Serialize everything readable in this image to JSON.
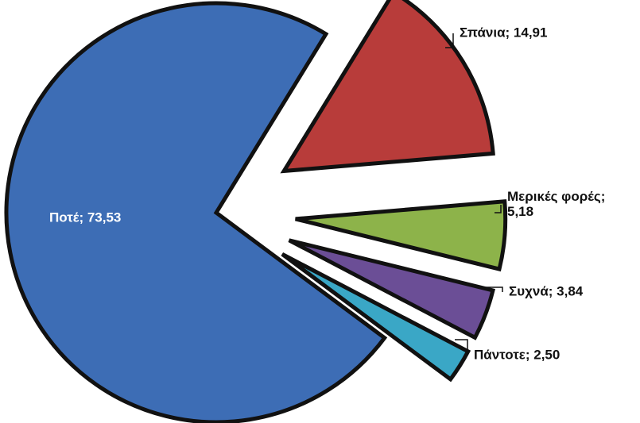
{
  "chart_data": {
    "type": "pie",
    "values": [
      14.91,
      5.18,
      3.84,
      2.5,
      73.53
    ],
    "value_labels": [
      "Σπάνια; 14,91",
      "Μερικές φορές; 5,18",
      "Συχνά; 3,84",
      "Πάντοτε; 2,50",
      "Ποτέ; 73,53"
    ],
    "colors": [
      "#b83c3a",
      "#8db34a",
      "#6b4e96",
      "#3aa7c6",
      "#3d6db5"
    ]
  }
}
